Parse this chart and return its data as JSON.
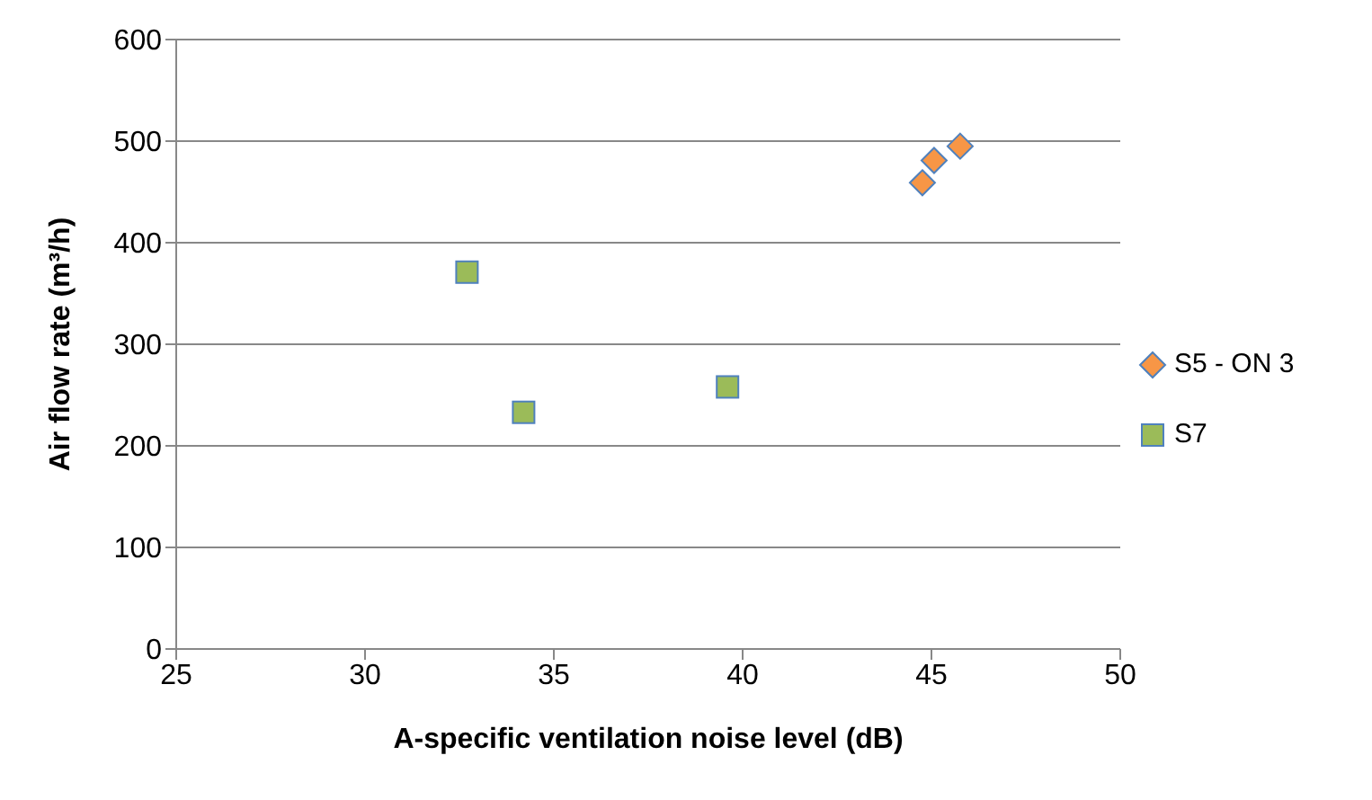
{
  "chart_data": {
    "type": "scatter",
    "xlabel": "A-specific ventilation noise level (dB)",
    "ylabel": "Air flow rate (m³/h)",
    "xlim": [
      25,
      50
    ],
    "xticks": [
      25,
      30,
      35,
      40,
      45,
      50
    ],
    "ylim": [
      0,
      600
    ],
    "yticks": [
      0,
      100,
      200,
      300,
      400,
      500,
      600
    ],
    "grid": "y",
    "legend": "right",
    "series": [
      {
        "name": "S5 - ON 3",
        "color": "#f79646",
        "marker": "diamond",
        "x": [
          44.76,
          45.07,
          45.76
        ],
        "values": [
          459,
          481,
          495
        ]
      },
      {
        "name": "S7",
        "color": "#9bbb59",
        "marker": "square",
        "x": [
          32.7,
          34.2,
          39.6
        ],
        "values": [
          371,
          233,
          258
        ]
      }
    ]
  }
}
